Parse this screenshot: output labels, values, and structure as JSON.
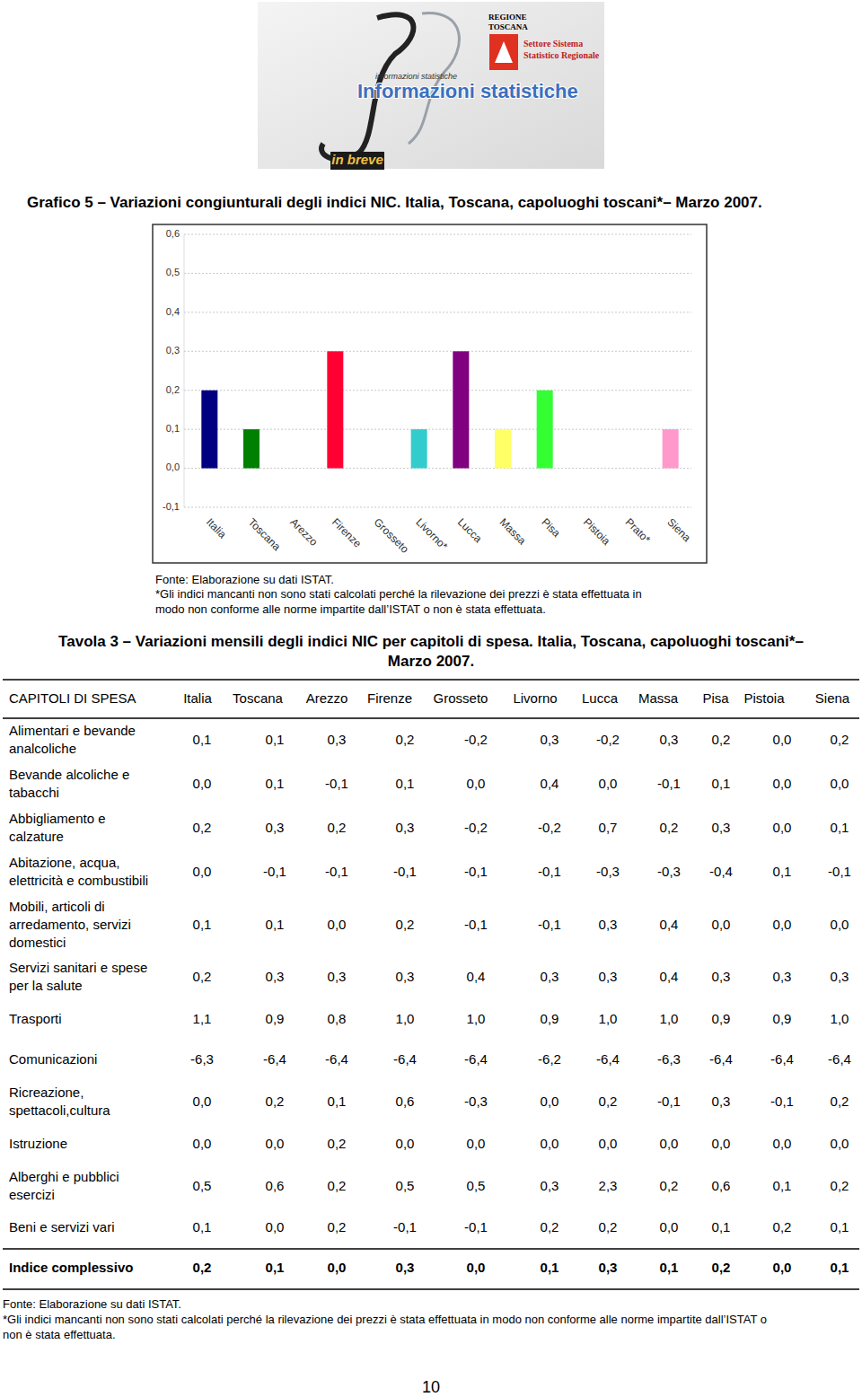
{
  "header": {
    "org": [
      "REGIONE",
      "TOSCANA"
    ],
    "dept": [
      "Settore Sistema",
      "Statistico Regionale"
    ],
    "small": "informazioni statistiche",
    "title": "Informazioni statistiche",
    "series": "in breve"
  },
  "chart_data": {
    "type": "bar",
    "title": "Grafico 5 – Variazioni congiunturali degli indici NIC. Italia, Toscana, capoluoghi toscani*– Marzo 2007.",
    "categories": [
      "Italia",
      "Toscana",
      "Arezzo",
      "Firenze",
      "Grosseto",
      "Livorno*",
      "Lucca",
      "Massa",
      "Pisa",
      "Pistoia",
      "Prato*",
      "Siena"
    ],
    "values": [
      0.2,
      0.1,
      0,
      0.3,
      0,
      0.1,
      0.3,
      0.1,
      0.2,
      0,
      null,
      0.1
    ],
    "colors": [
      "#000080",
      "#008000",
      "#ff6600",
      "#ff0033",
      "#996633",
      "#33cccc",
      "#800080",
      "#ffff66",
      "#33ff33",
      "#3366ff",
      "#999999",
      "#ff99cc"
    ],
    "ylim": [
      -0.1,
      0.6
    ],
    "yticks": [
      {
        "value": -0.1,
        "label": "-0,1"
      },
      {
        "value": 0,
        "label": "0,0"
      },
      {
        "value": 0.1,
        "label": "0,1"
      },
      {
        "value": 0.2,
        "label": "0,2"
      },
      {
        "value": 0.3,
        "label": "0,3"
      },
      {
        "value": 0.4,
        "label": "0,4"
      },
      {
        "value": 0.5,
        "label": "0,5"
      },
      {
        "value": 0.6,
        "label": "0,6"
      }
    ],
    "grid": true
  },
  "chart_source": "Fonte: Elaborazione su dati ISTAT.",
  "chart_note": [
    "*Gli indici mancanti non sono stati calcolati perché la rilevazione dei prezzi è stata effettuata in",
    "modo non conforme alle norme impartite dall’ISTAT o non è stata effettuata."
  ],
  "table_title": [
    "Tavola 3 – Variazioni mensili degli indici NIC per capitoli di spesa. Italia, Toscana, capoluoghi toscani*–",
    "Marzo 2007."
  ],
  "table": {
    "header": [
      "CAPITOLI DI SPESA",
      "Italia",
      "Toscana",
      "Arezzo",
      "Firenze",
      "Grosseto",
      "Livorno",
      "Lucca",
      "Massa",
      "Pisa",
      "Pistoia",
      "Siena"
    ],
    "rows": [
      {
        "label": [
          "Alimentari e bevande",
          "analcoliche"
        ],
        "values": [
          "0,1",
          "0,1",
          "0,3",
          "0,2",
          "-0,2",
          "0,3",
          "-0,2",
          "0,3",
          "0,2",
          "0,0",
          "0,2"
        ]
      },
      {
        "label": [
          "Bevande alcoliche e",
          "tabacchi"
        ],
        "values": [
          "0,0",
          "0,1",
          "-0,1",
          "0,1",
          "0,0",
          "0,4",
          "0,0",
          "-0,1",
          "0,1",
          "0,0",
          "0,0"
        ]
      },
      {
        "label": [
          "Abbigliamento e",
          "calzature"
        ],
        "values": [
          "0,2",
          "0,3",
          "0,2",
          "0,3",
          "-0,2",
          "-0,2",
          "0,7",
          "0,2",
          "0,3",
          "0,0",
          "0,1"
        ]
      },
      {
        "label": [
          "Abitazione, acqua,",
          "elettricità e combustibili"
        ],
        "values": [
          "0,0",
          "-0,1",
          "-0,1",
          "-0,1",
          "-0,1",
          "-0,1",
          "-0,3",
          "-0,3",
          "-0,4",
          "0,1",
          "-0,1"
        ]
      },
      {
        "label": [
          "Mobili, articoli di",
          "arredamento, servizi",
          "domestici"
        ],
        "values": [
          "0,1",
          "0,1",
          "0,0",
          "0,2",
          "-0,1",
          "-0,1",
          "0,3",
          "0,4",
          "0,0",
          "0,0",
          "0,0"
        ]
      },
      {
        "label": [
          "Servizi sanitari e spese",
          "per la salute"
        ],
        "values": [
          "0,2",
          "0,3",
          "0,3",
          "0,3",
          "0,4",
          "0,3",
          "0,3",
          "0,4",
          "0,3",
          "0,3",
          "0,3"
        ]
      },
      {
        "label": [
          "Trasporti"
        ],
        "values": [
          "1,1",
          "0,9",
          "0,8",
          "1,0",
          "1,0",
          "0,9",
          "1,0",
          "1,0",
          "0,9",
          "0,9",
          "1,0"
        ]
      },
      {
        "label": [
          "Comunicazioni"
        ],
        "values": [
          "-6,3",
          "-6,4",
          "-6,4",
          "-6,4",
          "-6,4",
          "-6,2",
          "-6,4",
          "-6,3",
          "-6,4",
          "-6,4",
          "-6,4"
        ]
      },
      {
        "label": [
          "Ricreazione,",
          "spettacoli,cultura"
        ],
        "values": [
          "0,0",
          "0,2",
          "0,1",
          "0,6",
          "-0,3",
          "0,0",
          "0,2",
          "-0,1",
          "0,3",
          "-0,1",
          "0,2"
        ]
      },
      {
        "label": [
          "Istruzione"
        ],
        "values": [
          "0,0",
          "0,0",
          "0,2",
          "0,0",
          "0,0",
          "0,0",
          "0,0",
          "0,0",
          "0,0",
          "0,0",
          "0,0"
        ]
      },
      {
        "label": [
          "Alberghi e pubblici",
          "esercizi"
        ],
        "values": [
          "0,5",
          "0,6",
          "0,2",
          "0,5",
          "0,5",
          "0,3",
          "2,3",
          "0,2",
          "0,6",
          "0,1",
          "0,2"
        ]
      },
      {
        "label": [
          "Beni e servizi vari"
        ],
        "values": [
          "0,1",
          "0,0",
          "0,2",
          "-0,1",
          "-0,1",
          "0,2",
          "0,2",
          "0,0",
          "0,1",
          "0,2",
          "0,1"
        ]
      }
    ],
    "total": {
      "label": "Indice complessivo",
      "values": [
        "0,2",
        "0,1",
        "0,0",
        "0,3",
        "0,0",
        "0,1",
        "0,3",
        "0,1",
        "0,2",
        "0,0",
        "0,1"
      ]
    }
  },
  "table_source": "Fonte: Elaborazione su dati ISTAT.",
  "table_note": [
    "*Gli indici mancanti non sono stati calcolati perché la rilevazione dei prezzi è stata effettuata in modo non conforme alle norme impartite dall’ISTAT o",
    "non è stata effettuata."
  ],
  "page_number": "10"
}
